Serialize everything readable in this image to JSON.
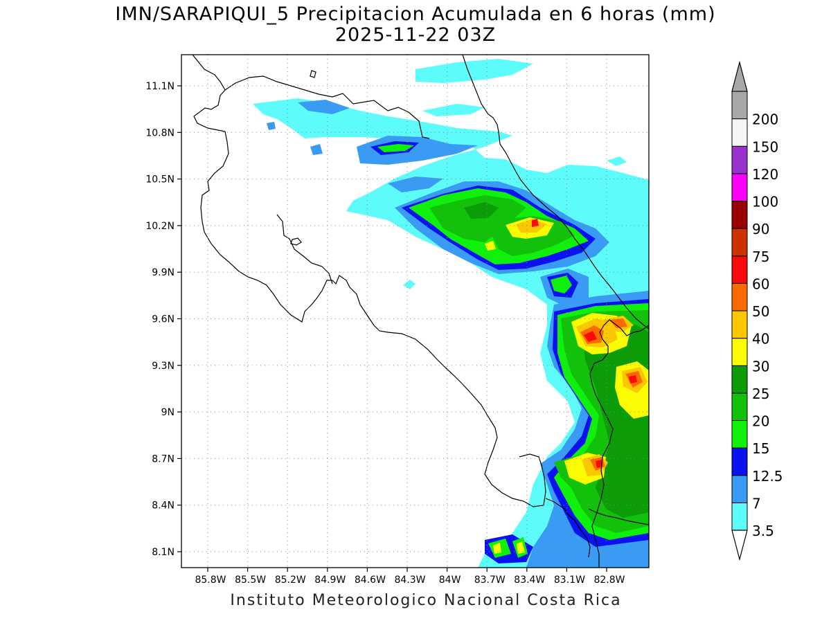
{
  "header": {
    "title": "IMN/SARAPIQUI_5 Precipitacion Acumulada en 6 horas (mm)",
    "subtitle": "2025-11-22 03Z"
  },
  "footer": {
    "credit": "Instituto Meteorologico Nacional Costa Rica"
  },
  "axes": {
    "lon_labels": [
      "85.8W",
      "85.5W",
      "85.2W",
      "84.9W",
      "84.6W",
      "84.3W",
      "84W",
      "83.7W",
      "83.4W",
      "83.1W",
      "82.8W"
    ],
    "lat_labels": [
      "11.1N",
      "10.8N",
      "10.5N",
      "10.2N",
      "9.9N",
      "9.6N",
      "9.3N",
      "9N",
      "8.7N",
      "8.4N",
      "8.1N"
    ],
    "grid": "dotted"
  },
  "legend": {
    "levels": [
      {
        "label": "3.5",
        "color": "#5efbfb"
      },
      {
        "label": "7",
        "color": "#3a9bf4"
      },
      {
        "label": "12.5",
        "color": "#0a12f0"
      },
      {
        "label": "15",
        "color": "#0ff00a"
      },
      {
        "label": "20",
        "color": "#12c10a"
      },
      {
        "label": "25",
        "color": "#0b9c08"
      },
      {
        "label": "30",
        "color": "#fbfb04"
      },
      {
        "label": "40",
        "color": "#fbc700"
      },
      {
        "label": "50",
        "color": "#fb6a00"
      },
      {
        "label": "60",
        "color": "#fb0a0a"
      },
      {
        "label": "75",
        "color": "#cc3300"
      },
      {
        "label": "90",
        "color": "#9a0000"
      },
      {
        "label": "100",
        "color": "#fb00fb"
      },
      {
        "label": "120",
        "color": "#9932cc"
      },
      {
        "label": "150",
        "color": "#f5f5f5"
      },
      {
        "label": "200",
        "color": "#a8a8a8"
      }
    ]
  }
}
